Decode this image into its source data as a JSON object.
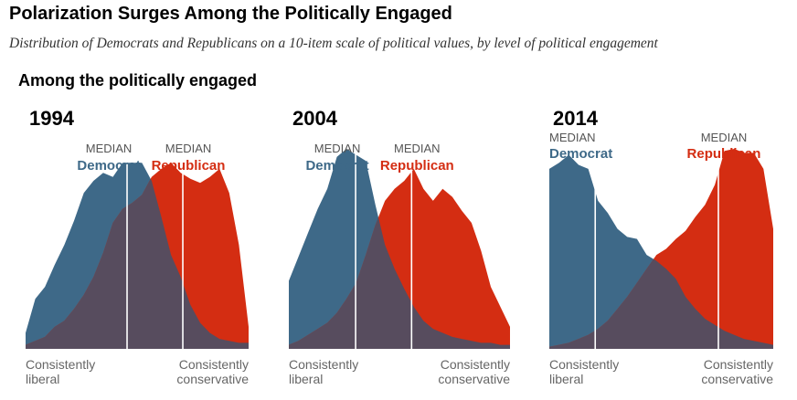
{
  "header": {
    "title": "Polarization Surges Among the Politically Engaged",
    "subtitle": "Distribution of Democrats and Republicans on a 10-item scale of political values, by level of political engagement",
    "section_label": "Among the politically engaged"
  },
  "colors": {
    "democrat": "#3e6988",
    "republican": "#d42d12",
    "overlap": "#574c5e",
    "median_line": "#ffffff",
    "median_label": "#555555",
    "axis_label": "#666666",
    "year": "#000000"
  },
  "chart_data": [
    {
      "type": "area",
      "title": "1994",
      "x_labels": [
        "Consistently\nliberal",
        "Consistently\nconservative"
      ],
      "series": [
        {
          "name": "Democrat",
          "median_label": [
            "MEDIAN",
            "Democrat"
          ],
          "median_x": 0.455,
          "values": [
            0.08,
            0.25,
            0.31,
            0.42,
            0.52,
            0.64,
            0.78,
            0.84,
            0.88,
            0.86,
            0.93,
            0.93,
            0.93,
            0.84,
            0.66,
            0.47,
            0.36,
            0.22,
            0.13,
            0.08,
            0.05,
            0.04,
            0.03,
            0.03
          ]
        },
        {
          "name": "Republican",
          "median_label": [
            "MEDIAN",
            "Republican"
          ],
          "median_x": 0.705,
          "values": [
            0.02,
            0.04,
            0.06,
            0.11,
            0.14,
            0.2,
            0.27,
            0.36,
            0.48,
            0.63,
            0.7,
            0.73,
            0.77,
            0.86,
            0.9,
            0.93,
            0.88,
            0.85,
            0.83,
            0.86,
            0.9,
            0.78,
            0.52,
            0.11
          ]
        }
      ]
    },
    {
      "type": "area",
      "title": "2004",
      "x_labels": [
        "Consistently\nliberal",
        "Consistently\nconservative"
      ],
      "series": [
        {
          "name": "Democrat",
          "median_label": [
            "MEDIAN",
            "Democrat"
          ],
          "median_x": 0.302,
          "values": [
            0.34,
            0.46,
            0.58,
            0.7,
            0.8,
            0.96,
            1.0,
            0.97,
            0.94,
            0.72,
            0.52,
            0.4,
            0.3,
            0.21,
            0.14,
            0.1,
            0.08,
            0.06,
            0.05,
            0.04,
            0.03,
            0.03,
            0.02,
            0.02
          ]
        },
        {
          "name": "Republican",
          "median_label": [
            "MEDIAN",
            "Republican"
          ],
          "median_x": 0.555,
          "values": [
            0.02,
            0.04,
            0.07,
            0.1,
            0.13,
            0.18,
            0.25,
            0.33,
            0.47,
            0.62,
            0.74,
            0.8,
            0.84,
            0.9,
            0.8,
            0.74,
            0.8,
            0.76,
            0.69,
            0.63,
            0.49,
            0.31,
            0.21,
            0.11
          ]
        }
      ]
    },
    {
      "type": "area",
      "title": "2014",
      "x_labels": [
        "Consistently\nliberal",
        "Consistently\nconservative"
      ],
      "series": [
        {
          "name": "Democrat",
          "median_label": [
            "MEDIAN",
            "Democrat"
          ],
          "median_x": 0.205,
          "values": [
            0.9,
            0.93,
            0.97,
            0.92,
            0.9,
            0.74,
            0.68,
            0.6,
            0.56,
            0.55,
            0.47,
            0.44,
            0.4,
            0.35,
            0.26,
            0.2,
            0.15,
            0.12,
            0.09,
            0.07,
            0.05,
            0.04,
            0.03,
            0.02
          ]
        },
        {
          "name": "Republican",
          "median_label": [
            "MEDIAN",
            "Republican"
          ],
          "median_x": 0.755,
          "values": [
            0.01,
            0.02,
            0.03,
            0.05,
            0.07,
            0.1,
            0.14,
            0.2,
            0.26,
            0.33,
            0.4,
            0.47,
            0.5,
            0.55,
            0.59,
            0.66,
            0.72,
            0.82,
            0.99,
            1.0,
            0.98,
            0.98,
            0.9,
            0.6
          ]
        }
      ]
    }
  ]
}
